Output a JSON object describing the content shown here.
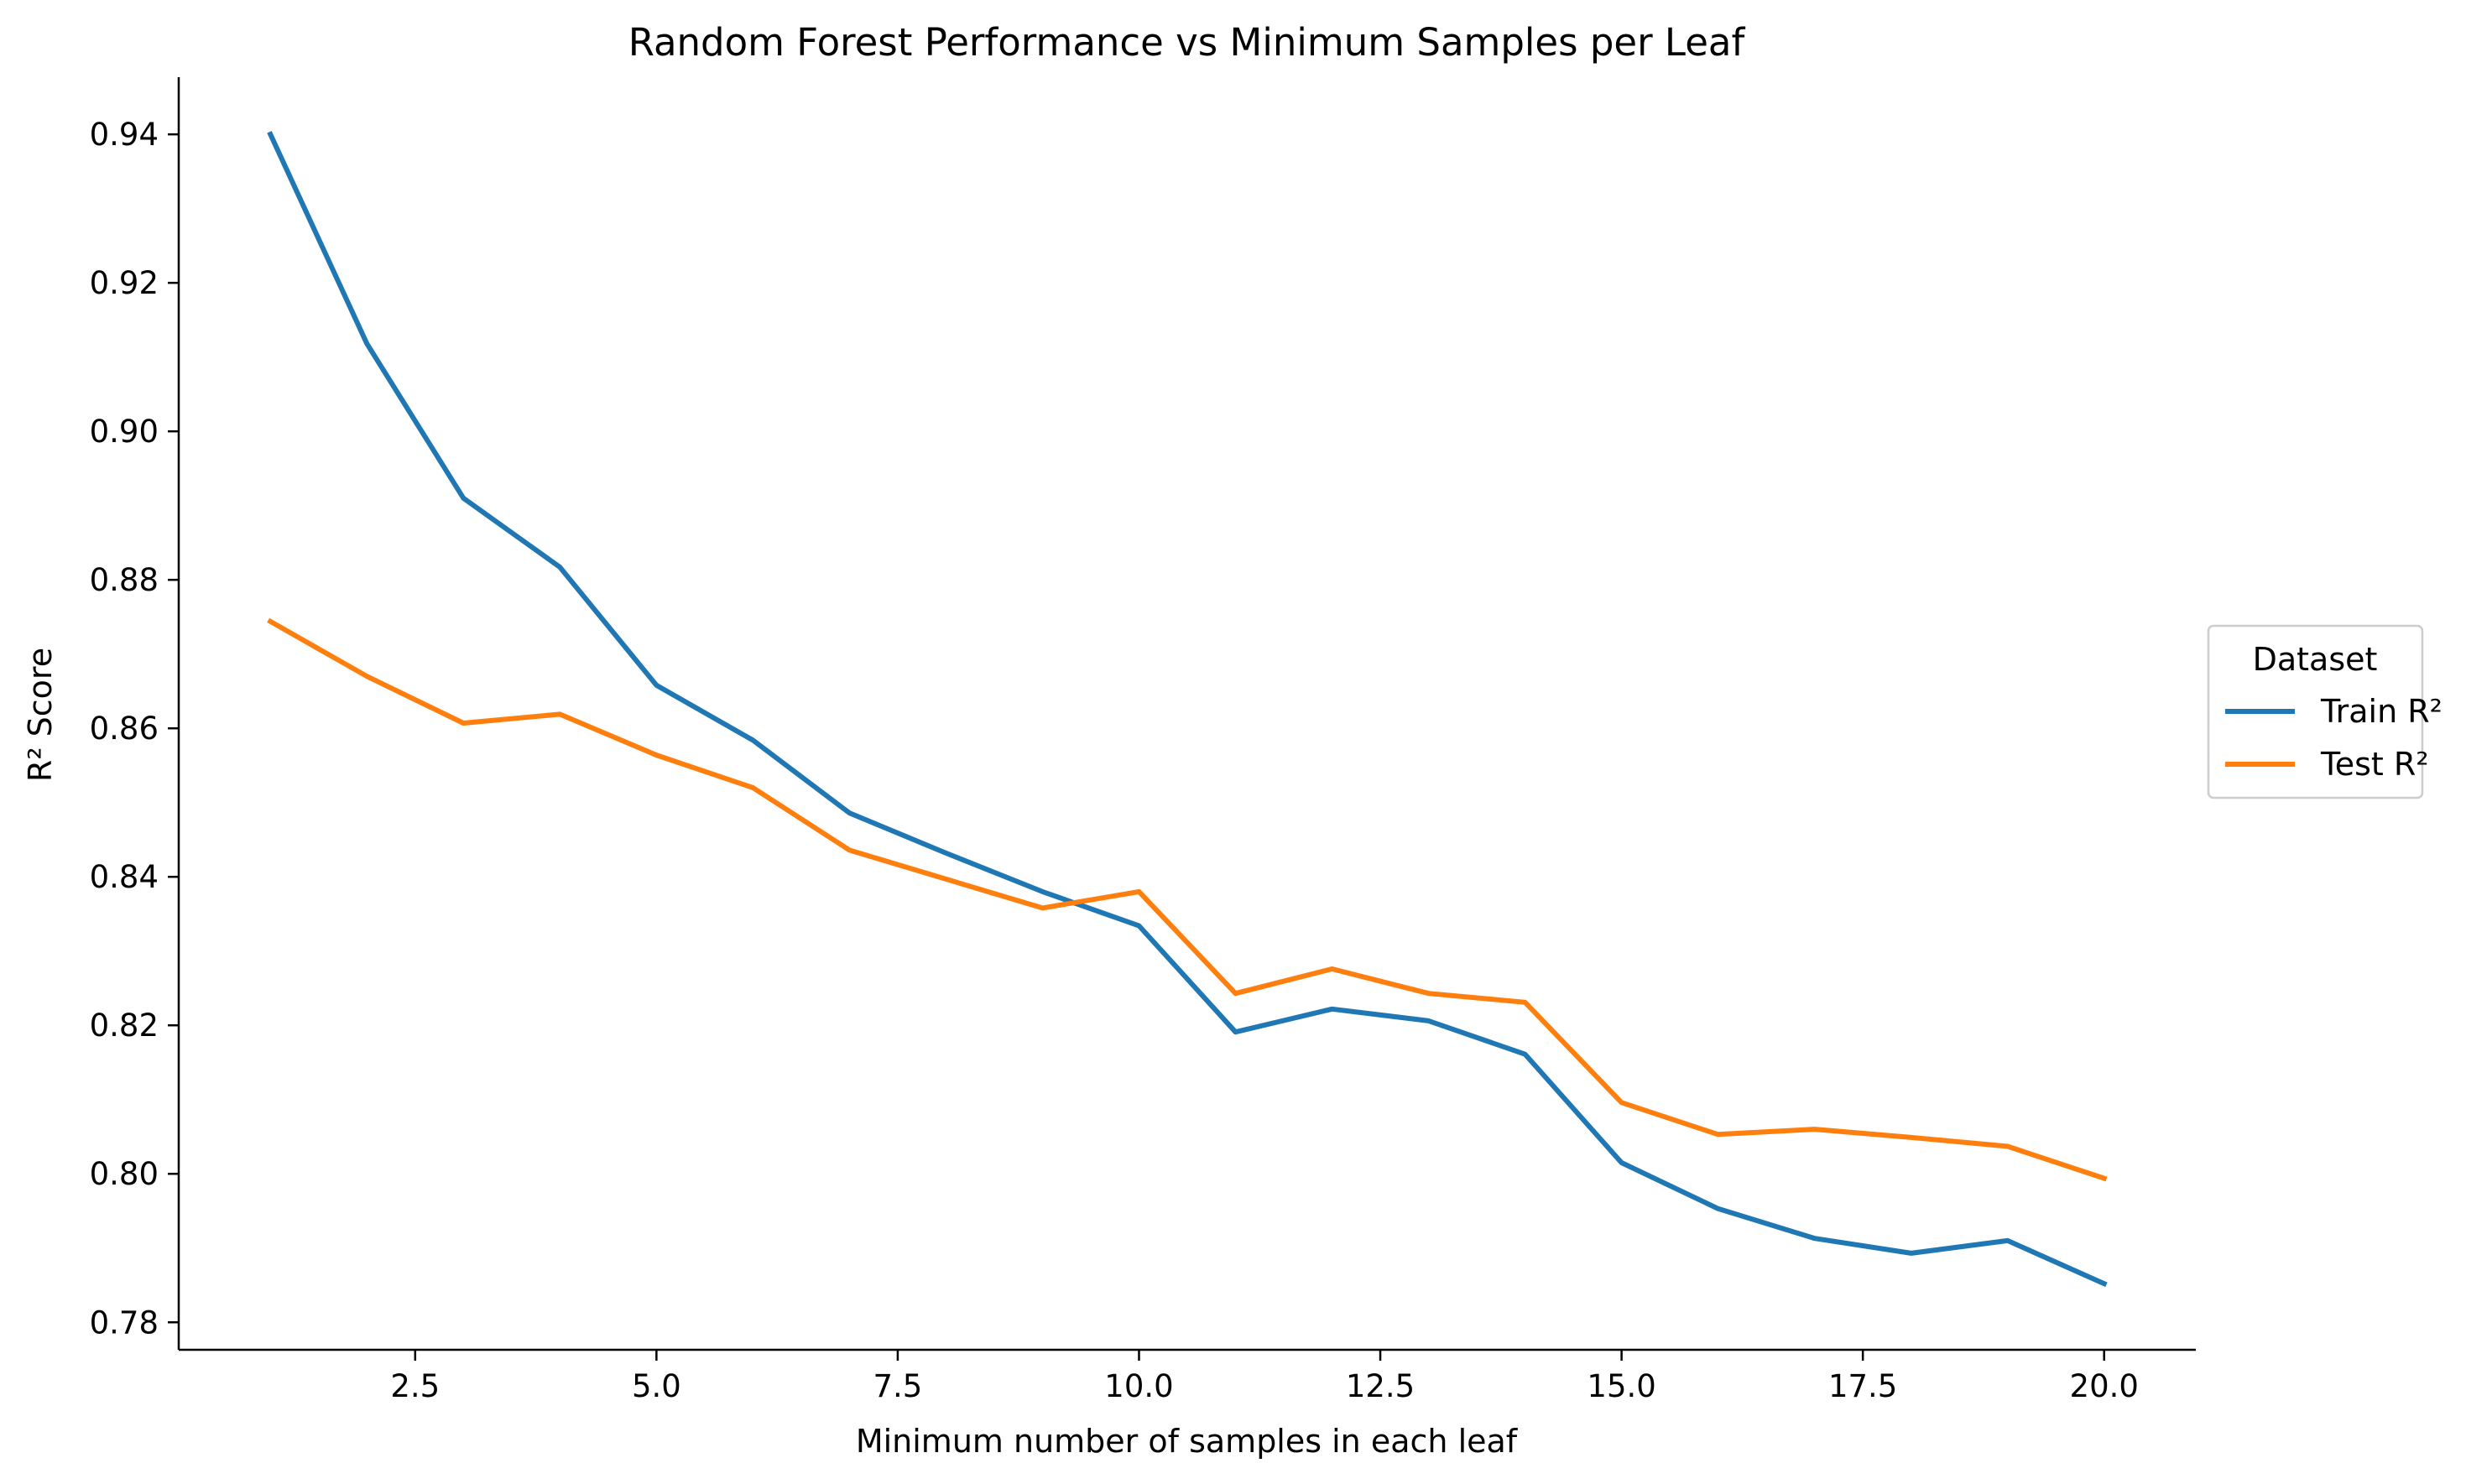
{
  "chart_data": {
    "type": "line",
    "title": "Random Forest Performance vs Minimum Samples per Leaf",
    "xlabel": "Minimum number of samples in each leaf",
    "ylabel": "R² Score",
    "x": [
      1,
      2,
      3,
      4,
      5,
      6,
      7,
      8,
      9,
      10,
      11,
      12,
      13,
      14,
      15,
      16,
      17,
      18,
      19,
      20
    ],
    "series": [
      {
        "name": "Train R²",
        "color": "#1f77b4",
        "values": [
          0.94,
          0.9118,
          0.891,
          0.8817,
          0.8658,
          0.8584,
          0.8486,
          0.8432,
          0.838,
          0.8334,
          0.8191,
          0.8222,
          0.8206,
          0.8161,
          0.8015,
          0.7953,
          0.7913,
          0.7893,
          0.791,
          0.7852
        ]
      },
      {
        "name": "Test R²",
        "color": "#ff7f0e",
        "values": [
          0.8744,
          0.867,
          0.8607,
          0.8619,
          0.8564,
          0.852,
          0.8436,
          0.8397,
          0.8358,
          0.838,
          0.8243,
          0.8276,
          0.8243,
          0.8231,
          0.8096,
          0.8053,
          0.806,
          0.8049,
          0.8037,
          0.7994
        ]
      }
    ],
    "xlim": [
      0.05,
      20.95
    ],
    "ylim": [
      0.7763,
      0.9477
    ],
    "xticks": [
      "2.5",
      "5.0",
      "7.5",
      "10.0",
      "12.5",
      "15.0",
      "17.5",
      "20.0"
    ],
    "xtick_values": [
      2.5,
      5.0,
      7.5,
      10.0,
      12.5,
      15.0,
      17.5,
      20.0
    ],
    "yticks": [
      "0.78",
      "0.80",
      "0.82",
      "0.84",
      "0.86",
      "0.88",
      "0.90",
      "0.92",
      "0.94"
    ],
    "ytick_values": [
      0.78,
      0.8,
      0.82,
      0.84,
      0.86,
      0.88,
      0.9,
      0.92,
      0.94
    ],
    "grid": false,
    "legend": {
      "title": "Dataset",
      "placement": "center-right outside plot"
    }
  }
}
